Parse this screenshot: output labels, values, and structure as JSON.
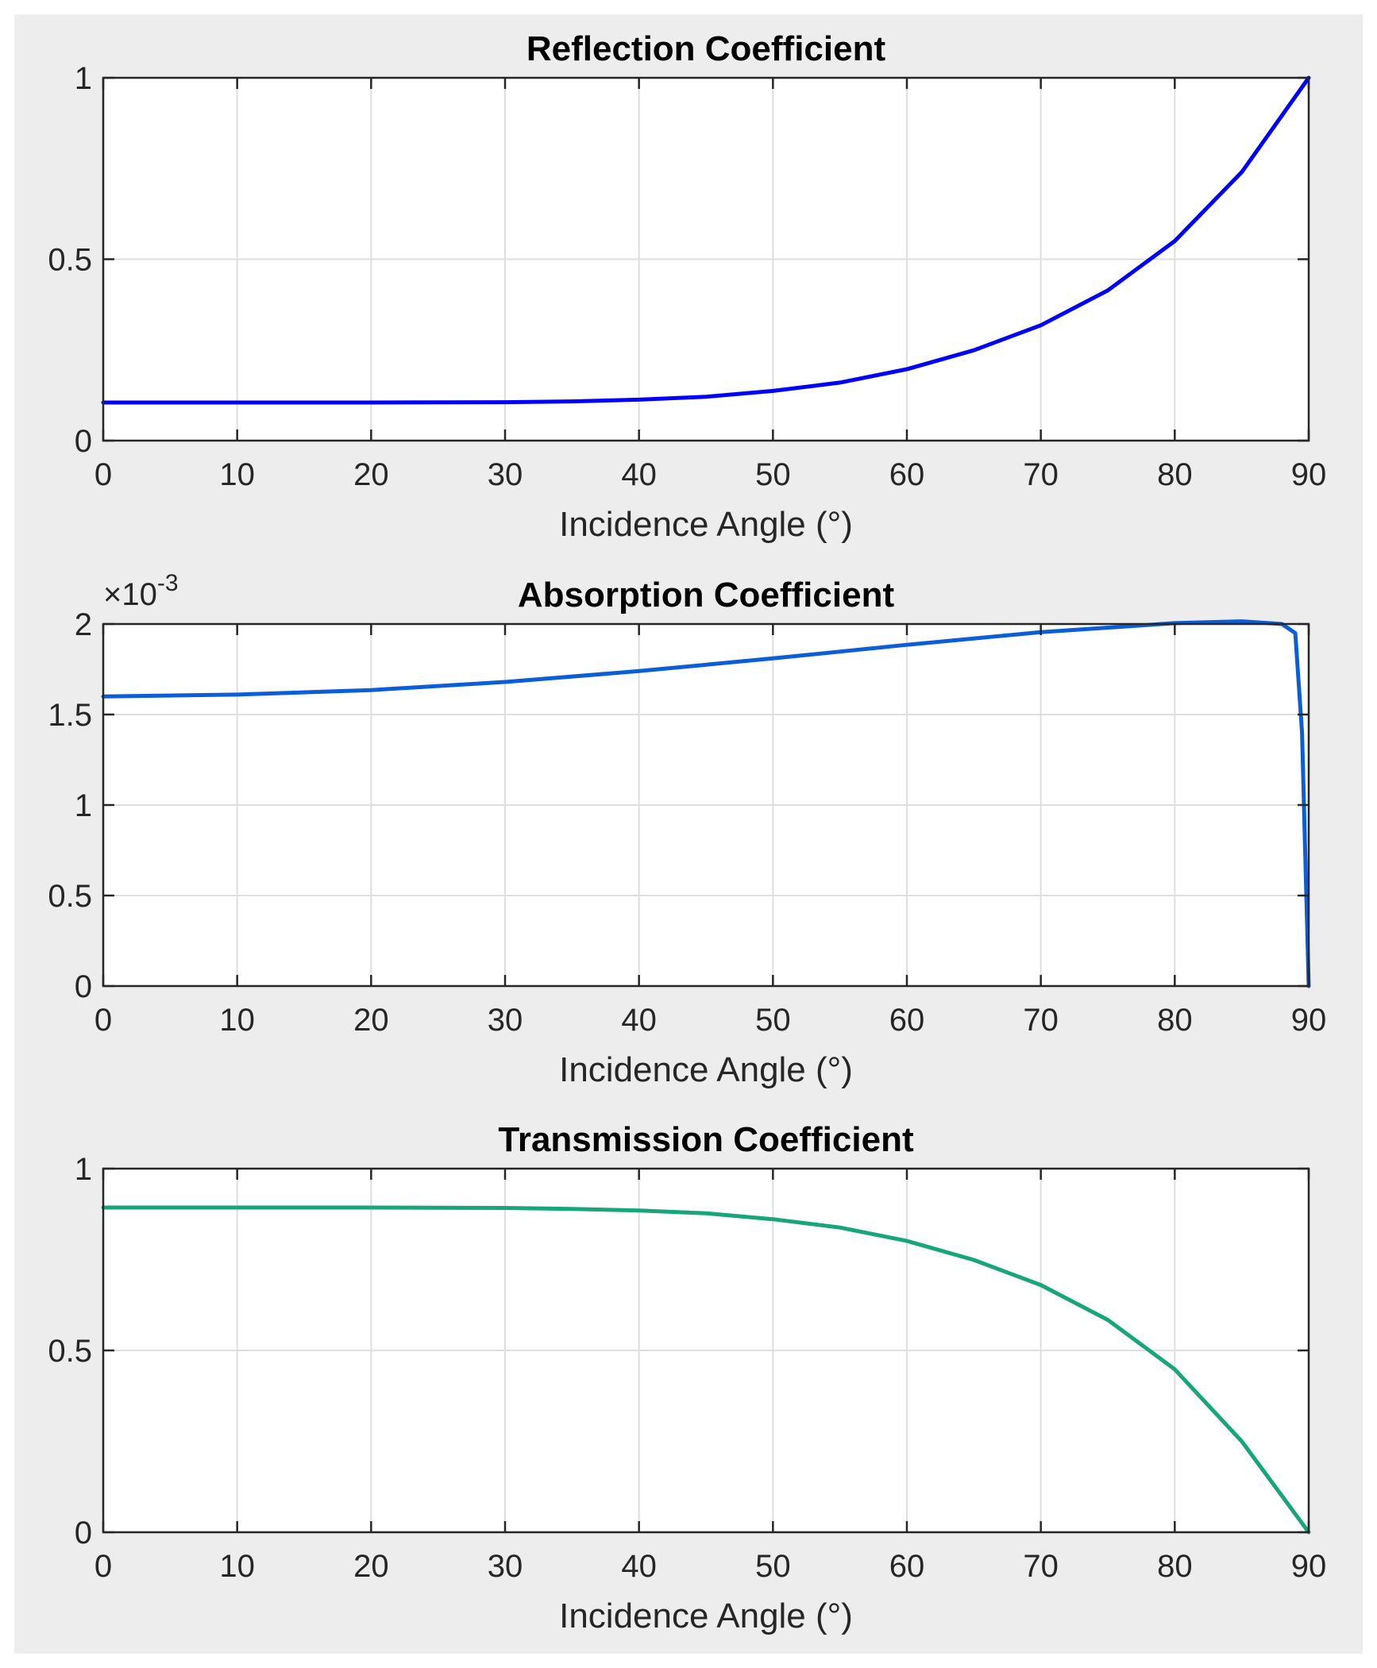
{
  "chart_data": [
    {
      "type": "line",
      "title": "Reflection Coefficient",
      "xlabel": "Incidence Angle (°)",
      "ylabel": "",
      "xlim": [
        0,
        90
      ],
      "ylim": [
        0,
        1
      ],
      "xticks": [
        0,
        10,
        20,
        30,
        40,
        50,
        60,
        70,
        80,
        90
      ],
      "yticks": [
        0,
        0.5,
        1
      ],
      "ytick_labels": [
        "0",
        "0.5",
        "1"
      ],
      "grid": true,
      "color": "#0000ff",
      "series": [
        {
          "name": "Reflection",
          "x": [
            0,
            10,
            20,
            30,
            35,
            40,
            45,
            50,
            55,
            60,
            65,
            70,
            75,
            80,
            85,
            90
          ],
          "values": [
            0.105,
            0.105,
            0.105,
            0.106,
            0.108,
            0.113,
            0.121,
            0.137,
            0.16,
            0.197,
            0.249,
            0.318,
            0.414,
            0.55,
            0.74,
            1.0
          ]
        }
      ]
    },
    {
      "type": "line",
      "title": "Absorption Coefficient",
      "xlabel": "Incidence Angle (°)",
      "ylabel": "",
      "exponent_base": "×10",
      "exponent_power": "-3",
      "xlim": [
        0,
        90
      ],
      "ylim": [
        0,
        2
      ],
      "xticks": [
        0,
        10,
        20,
        30,
        40,
        50,
        60,
        70,
        80,
        90
      ],
      "yticks": [
        0,
        0.5,
        1,
        1.5,
        2
      ],
      "ytick_labels": [
        "0",
        "0.5",
        "1",
        "1.5",
        "2"
      ],
      "grid": true,
      "color": "#0b5ed7",
      "series": [
        {
          "name": "Absorption (×10^-3)",
          "x": [
            0,
            10,
            20,
            30,
            40,
            50,
            60,
            70,
            80,
            85,
            88,
            89,
            89.5,
            90
          ],
          "values": [
            1.6,
            1.61,
            1.635,
            1.68,
            1.74,
            1.81,
            1.885,
            1.955,
            2.005,
            2.015,
            2.0,
            1.95,
            1.4,
            0.0
          ]
        }
      ]
    },
    {
      "type": "line",
      "title": "Transmission Coefficient",
      "xlabel": "Incidence Angle (°)",
      "ylabel": "",
      "xlim": [
        0,
        90
      ],
      "ylim": [
        0,
        1
      ],
      "xticks": [
        0,
        10,
        20,
        30,
        40,
        50,
        60,
        70,
        80,
        90
      ],
      "yticks": [
        0,
        0.5,
        1
      ],
      "ytick_labels": [
        "0",
        "0.5",
        "1"
      ],
      "grid": true,
      "color": "#17a57a",
      "series": [
        {
          "name": "Transmission",
          "x": [
            0,
            10,
            20,
            30,
            35,
            40,
            45,
            50,
            55,
            60,
            65,
            70,
            75,
            80,
            85,
            90
          ],
          "values": [
            0.893,
            0.893,
            0.893,
            0.892,
            0.889,
            0.885,
            0.877,
            0.861,
            0.838,
            0.801,
            0.749,
            0.68,
            0.584,
            0.448,
            0.25,
            0.0
          ]
        }
      ]
    }
  ]
}
